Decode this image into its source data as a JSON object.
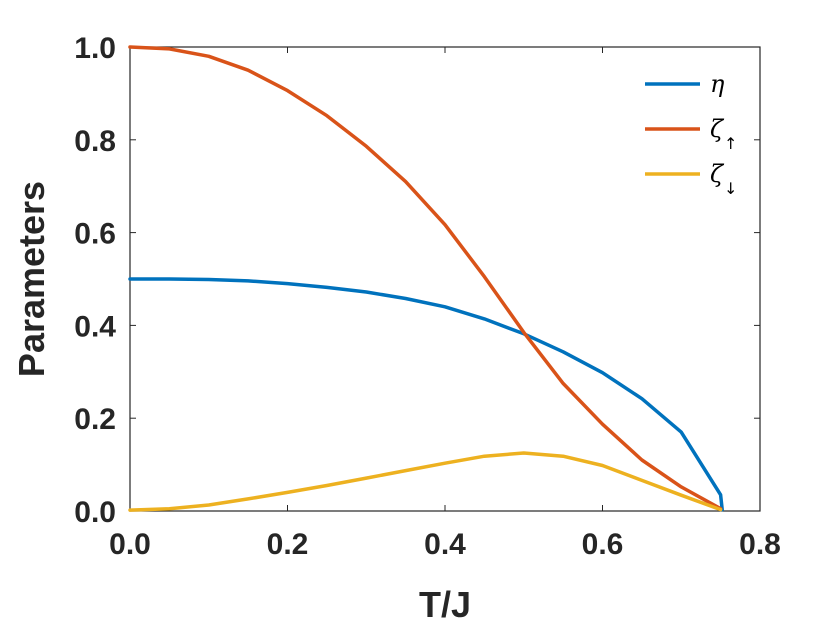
{
  "chart_data": {
    "type": "line",
    "xlabel": "T/J",
    "ylabel": "Parameters",
    "xlim": [
      0,
      0.8
    ],
    "ylim": [
      0,
      1
    ],
    "xticks": [
      "0.0",
      "0.2",
      "0.4",
      "0.6",
      "0.8"
    ],
    "yticks": [
      "0.0",
      "0.2",
      "0.4",
      "0.6",
      "0.8",
      "1.0"
    ],
    "grid": false,
    "legend_position": "top-right",
    "series": [
      {
        "name": "η",
        "symbol": "η",
        "subscript": "",
        "color": "#0072BD",
        "points": [
          [
            0,
            0.5
          ],
          [
            0.05,
            0.5
          ],
          [
            0.1,
            0.499
          ],
          [
            0.15,
            0.496
          ],
          [
            0.2,
            0.49
          ],
          [
            0.25,
            0.482
          ],
          [
            0.3,
            0.472
          ],
          [
            0.35,
            0.458
          ],
          [
            0.4,
            0.44
          ],
          [
            0.45,
            0.414
          ],
          [
            0.5,
            0.382
          ],
          [
            0.55,
            0.343
          ],
          [
            0.6,
            0.298
          ],
          [
            0.65,
            0.242
          ],
          [
            0.7,
            0.17
          ],
          [
            0.75,
            0.035
          ],
          [
            0.752,
            0.003
          ]
        ]
      },
      {
        "name": "ζ↑",
        "symbol": "ζ",
        "subscript": "↑",
        "color": "#D95319",
        "points": [
          [
            0,
            1.0
          ],
          [
            0.05,
            0.996
          ],
          [
            0.1,
            0.98
          ],
          [
            0.15,
            0.95
          ],
          [
            0.2,
            0.906
          ],
          [
            0.25,
            0.852
          ],
          [
            0.3,
            0.786
          ],
          [
            0.35,
            0.71
          ],
          [
            0.4,
            0.617
          ],
          [
            0.45,
            0.505
          ],
          [
            0.5,
            0.385
          ],
          [
            0.55,
            0.275
          ],
          [
            0.6,
            0.187
          ],
          [
            0.65,
            0.11
          ],
          [
            0.7,
            0.052
          ],
          [
            0.75,
            0.005
          ]
        ]
      },
      {
        "name": "ζ↓",
        "symbol": "ζ",
        "subscript": "↓",
        "color": "#EDB120",
        "points": [
          [
            0,
            0.002
          ],
          [
            0.05,
            0.005
          ],
          [
            0.1,
            0.013
          ],
          [
            0.15,
            0.026
          ],
          [
            0.2,
            0.04
          ],
          [
            0.25,
            0.055
          ],
          [
            0.3,
            0.071
          ],
          [
            0.35,
            0.087
          ],
          [
            0.4,
            0.103
          ],
          [
            0.45,
            0.118
          ],
          [
            0.5,
            0.125
          ],
          [
            0.55,
            0.118
          ],
          [
            0.6,
            0.098
          ],
          [
            0.65,
            0.066
          ],
          [
            0.7,
            0.034
          ],
          [
            0.75,
            0.003
          ]
        ]
      }
    ]
  }
}
